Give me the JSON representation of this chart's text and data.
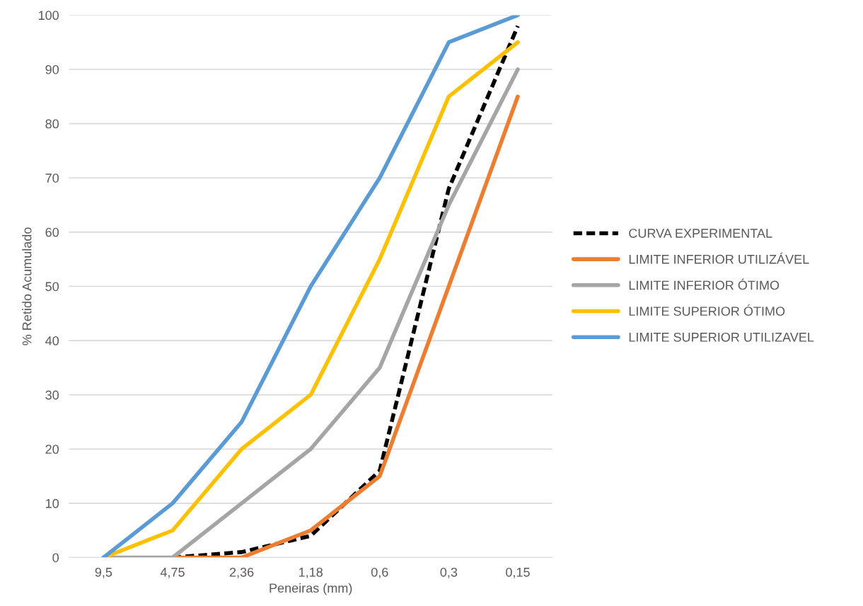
{
  "chart_data": {
    "type": "line",
    "xlabel": "Peneiras (mm)",
    "ylabel": "% Retido Acumulado",
    "categories": [
      "9,5",
      "4,75",
      "2,36",
      "1,18",
      "0,6",
      "0,3",
      "0,15"
    ],
    "series": [
      {
        "name": "CURVA EXPERIMENTAL",
        "color": "#000000",
        "line_style": "dashed",
        "values": [
          null,
          0,
          1,
          4,
          16,
          68,
          98
        ]
      },
      {
        "name": "LIMITE INFERIOR UTILIZÁVEL",
        "color": "#ed7d31",
        "values": [
          null,
          0,
          0,
          5,
          15,
          50,
          85
        ]
      },
      {
        "name": "LIMITE INFERIOR ÓTIMO",
        "color": "#a5a5a5",
        "values": [
          0,
          0,
          10,
          20,
          35,
          65,
          90
        ]
      },
      {
        "name": "LIMITE SUPERIOR ÓTIMO",
        "color": "#ffc000",
        "values": [
          0,
          5,
          20,
          30,
          55,
          85,
          95
        ]
      },
      {
        "name": "LIMITE SUPERIOR UTILIZAVEL",
        "color": "#5b9bd5",
        "values": [
          0,
          10,
          25,
          50,
          70,
          95,
          100
        ]
      }
    ],
    "ylim": [
      0,
      100
    ],
    "yticks": [
      0,
      10,
      20,
      30,
      40,
      50,
      60,
      70,
      80,
      90,
      100
    ],
    "grid": "y",
    "legend": "right",
    "line_style": "solid"
  }
}
